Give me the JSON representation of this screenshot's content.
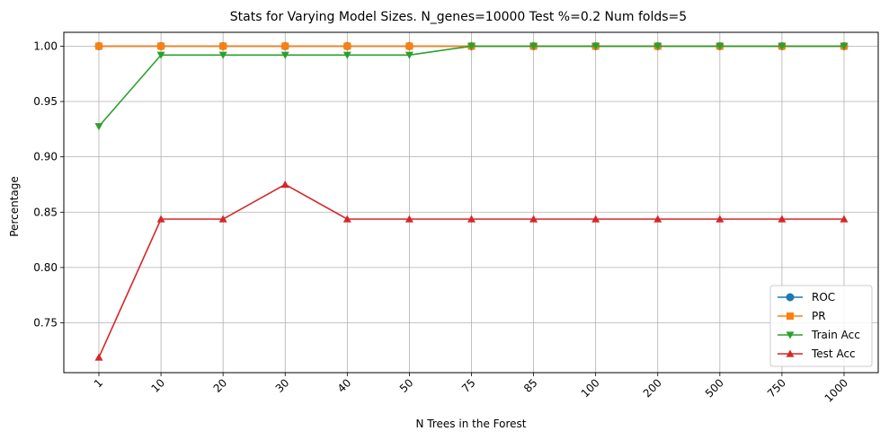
{
  "chart_data": {
    "type": "line",
    "title": "Stats for Varying Model Sizes. N_genes=10000 Test %=0.2 Num folds=5",
    "xlabel": "N Trees in the Forest",
    "ylabel": "Percentage",
    "categories": [
      "1",
      "10",
      "20",
      "30",
      "40",
      "50",
      "75",
      "85",
      "100",
      "200",
      "500",
      "750",
      "1000"
    ],
    "yticks": [
      "0.75",
      "0.80",
      "0.85",
      "0.90",
      "0.95",
      "1.00"
    ],
    "ylim": [
      0.705,
      1.0125
    ],
    "grid": true,
    "legend_position": "lower-right",
    "series": [
      {
        "name": "ROC",
        "color": "#1f77b4",
        "marker": "circle",
        "values": [
          1.0,
          1.0,
          1.0,
          1.0,
          1.0,
          1.0,
          1.0,
          1.0,
          1.0,
          1.0,
          1.0,
          1.0,
          1.0
        ]
      },
      {
        "name": "PR",
        "color": "#ff7f0e",
        "marker": "square",
        "values": [
          1.0,
          1.0,
          1.0,
          1.0,
          1.0,
          1.0,
          1.0,
          1.0,
          1.0,
          1.0,
          1.0,
          1.0,
          1.0
        ]
      },
      {
        "name": "Train Acc",
        "color": "#2ca02c",
        "marker": "triangle-down",
        "values": [
          0.9275,
          0.992,
          0.992,
          0.992,
          0.992,
          0.992,
          1.0,
          1.0,
          1.0,
          1.0,
          1.0,
          1.0,
          1.0
        ]
      },
      {
        "name": "Test Acc",
        "color": "#d62728",
        "marker": "triangle-up",
        "values": [
          0.71875,
          0.84375,
          0.84375,
          0.875,
          0.84375,
          0.84375,
          0.84375,
          0.84375,
          0.84375,
          0.84375,
          0.84375,
          0.84375,
          0.84375
        ]
      }
    ]
  }
}
